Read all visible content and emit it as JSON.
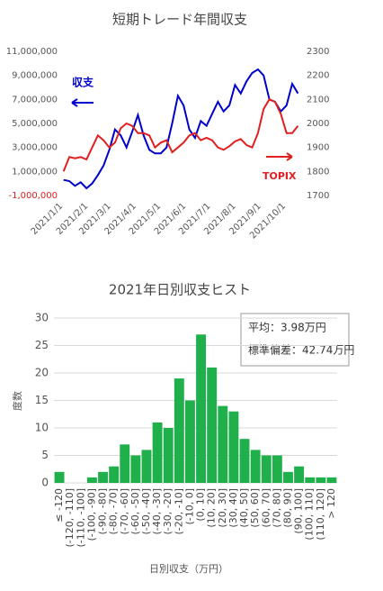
{
  "chart_data": [
    {
      "type": "line",
      "title": "短期トレード年間収支",
      "x": [
        "2021/1/4",
        "2021/1/11",
        "2021/1/18",
        "2021/1/25",
        "2021/2/1",
        "2021/2/8",
        "2021/2/15",
        "2021/2/22",
        "2021/3/1",
        "2021/3/8",
        "2021/3/15",
        "2021/3/22",
        "2021/3/29",
        "2021/4/5",
        "2021/4/12",
        "2021/4/19",
        "2021/4/26",
        "2021/5/3",
        "2021/5/10",
        "2021/5/17",
        "2021/5/24",
        "2021/5/31",
        "2021/6/7",
        "2021/6/14",
        "2021/6/21",
        "2021/6/28",
        "2021/7/5",
        "2021/7/12",
        "2021/7/19",
        "2021/7/26",
        "2021/8/2",
        "2021/8/9",
        "2021/8/16",
        "2021/8/23",
        "2021/8/30",
        "2021/9/6",
        "2021/9/13",
        "2021/9/20",
        "2021/9/27",
        "2021/10/4",
        "2021/10/11",
        "2021/10/18"
      ],
      "series": [
        {
          "name": "収支",
          "color": "#0000cc",
          "values": [
            300000,
            200000,
            -200000,
            100000,
            -400000,
            0,
            700000,
            1500000,
            2800000,
            4500000,
            4000000,
            3000000,
            4300000,
            5700000,
            4000000,
            2800000,
            2500000,
            2500000,
            3000000,
            5000000,
            7300000,
            6500000,
            4500000,
            3800000,
            5200000,
            4800000,
            5800000,
            6800000,
            6000000,
            6500000,
            8200000,
            7500000,
            8500000,
            9200000,
            9500000,
            9000000,
            7000000,
            6800000,
            6000000,
            6500000,
            8300000,
            7500000
          ]
        },
        {
          "name": "TOPIX",
          "color": "#e02020",
          "axis": "y2",
          "values": [
            1800,
            1860,
            1855,
            1860,
            1850,
            1900,
            1950,
            1930,
            1900,
            1920,
            1980,
            2000,
            1990,
            1960,
            1960,
            1950,
            1900,
            1920,
            1930,
            1880,
            1900,
            1920,
            1950,
            1960,
            1930,
            1940,
            1930,
            1900,
            1890,
            1905,
            1925,
            1935,
            1910,
            1900,
            1960,
            2060,
            2100,
            2090,
            2040,
            1960,
            1960,
            1990
          ]
        }
      ],
      "xlim": [
        "2021/1/1",
        "2021/10/22"
      ],
      "xticks": [
        "2021/1/1",
        "2021/2/1",
        "2021/3/1",
        "2021/4/1",
        "2021/5/1",
        "2021/6/1",
        "2021/7/1",
        "2021/8/1",
        "2021/9/1",
        "2021/10/1"
      ],
      "ylim": [
        -1000000,
        11000000
      ],
      "yticks": [
        {
          "value": -1000000,
          "label": "-1,000,000"
        },
        {
          "value": 1000000,
          "label": "1,000,000"
        },
        {
          "value": 3000000,
          "label": "3,000,000"
        },
        {
          "value": 5000000,
          "label": "5,000,000"
        },
        {
          "value": 7000000,
          "label": "7,000,000"
        },
        {
          "value": 9000000,
          "label": "9,000,000"
        },
        {
          "value": 11000000,
          "label": "11,000,000"
        }
      ],
      "y2lim": [
        1700,
        2300
      ],
      "y2ticks": [
        1700,
        1800,
        1900,
        2000,
        2100,
        2200,
        2300
      ],
      "grid": false
    },
    {
      "type": "bar",
      "title": "2021年日別収支ヒスト",
      "x_label": "日別収支（万円）",
      "y_label": "度数",
      "categories": [
        "≤ -120",
        "(-120, -110]",
        "(-110, -100]",
        "(-100, -90]",
        "(-90, -80]",
        "(-80, -70]",
        "(-70, -60]",
        "(-60, -50]",
        "(-50, -40]",
        "(-40, -30]",
        "(-30, -20]",
        "(-20, -10]",
        "(-10, 0]",
        "(0, 10]",
        "(10, 20]",
        "(20, 30]",
        "(30, 40]",
        "(40, 50]",
        "(50, 60]",
        "(60, 70]",
        "(70, 80]",
        "(80, 90]",
        "(90, 100]",
        "(100, 110]",
        "(110, 120]",
        "> 120"
      ],
      "values": [
        2,
        0,
        0,
        1,
        2,
        3,
        7,
        5,
        6,
        11,
        10,
        19,
        15,
        27,
        21,
        14,
        13,
        8,
        6,
        5,
        5,
        2,
        3,
        1,
        1,
        1
      ],
      "color": "#1fb04b",
      "ylim": [
        0,
        30
      ],
      "yticks": [
        0,
        5,
        10,
        15,
        20,
        25,
        30
      ],
      "grid": true,
      "annotations": [
        "平均：3.98万円",
        "標準偏差：42.74万円"
      ]
    }
  ]
}
